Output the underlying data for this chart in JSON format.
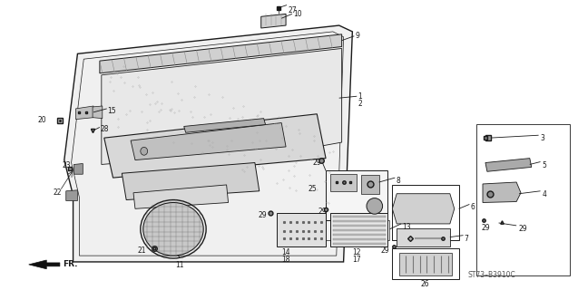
{
  "bg_color": "#ffffff",
  "line_color": "#1a1a1a",
  "gray_dark": "#444444",
  "gray_mid": "#888888",
  "gray_light": "#cccccc",
  "figsize": [
    6.37,
    3.2
  ],
  "dpi": 100,
  "note_text": "ST73–B3910C",
  "label_fs": 5.5
}
